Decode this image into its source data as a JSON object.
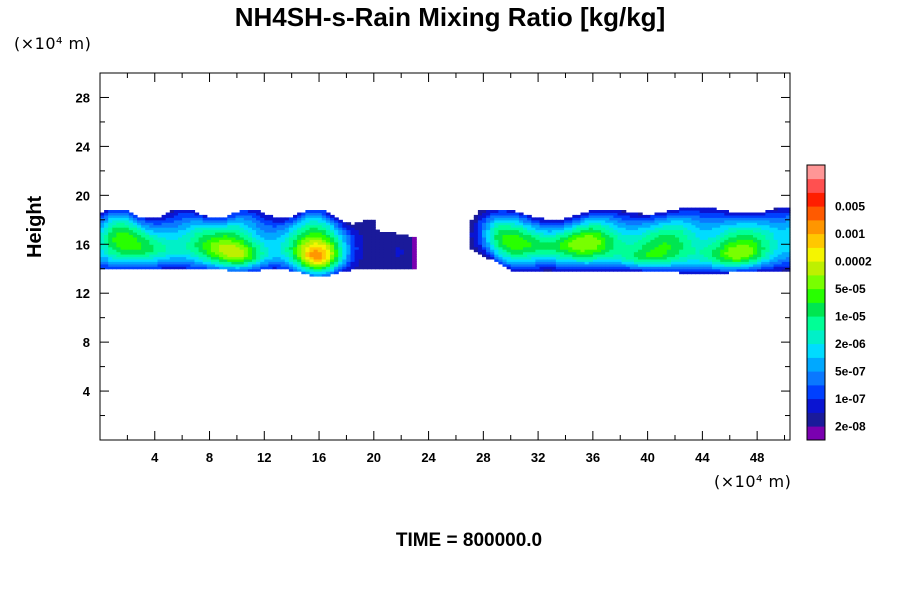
{
  "chart_data": {
    "type": "heatmap",
    "title": "NH4SH-s-Rain Mixing Ratio [kg/kg]",
    "ylabel": "Height",
    "xlabel": "",
    "x_unit_label": "(×10⁴ m)",
    "y_unit_label": "(×10⁴ m)",
    "xlim": [
      0,
      50.4
    ],
    "ylim": [
      0,
      30
    ],
    "x_ticks": [
      4,
      8,
      12,
      16,
      20,
      24,
      28,
      32,
      36,
      40,
      44,
      48
    ],
    "y_ticks": [
      4,
      8,
      12,
      16,
      20,
      24,
      28
    ],
    "annotation": "TIME = 800000.0",
    "colorbar": {
      "levels": [
        "",
        "2e-08",
        "",
        "1e-07",
        "",
        "5e-07",
        "",
        "2e-06",
        "",
        "1e-05",
        "",
        "5e-05",
        "",
        "0.0002",
        "",
        "0.001",
        "",
        "0.005",
        ""
      ],
      "labels": [
        "2e-08",
        "1e-07",
        "5e-07",
        "2e-06",
        "1e-05",
        "5e-05",
        "0.0002",
        "0.001",
        "0.005"
      ],
      "colors": [
        "#7a00b0",
        "#1a1a9a",
        "#0a14d2",
        "#0040ff",
        "#0a78ff",
        "#00a8ff",
        "#00dcff",
        "#00f0c8",
        "#00ff96",
        "#00e650",
        "#28ff00",
        "#78ff00",
        "#bef000",
        "#f5f500",
        "#ffc800",
        "#ff9600",
        "#ff5a00",
        "#ff1e00",
        "#ff5050",
        "#ff9696"
      ]
    },
    "series": [
      {
        "band": "left",
        "x_range": [
          0,
          22
        ],
        "height_range": [
          13,
          19
        ],
        "max_level": "0.0002",
        "peaks_x": [
          10.5,
          15.7
        ]
      },
      {
        "band": "right",
        "x_range": [
          27.2,
          50.4
        ],
        "height_range": [
          13.5,
          19
        ],
        "max_level": "0.0002",
        "peaks_x": [
          39.5,
          46
        ]
      }
    ]
  }
}
